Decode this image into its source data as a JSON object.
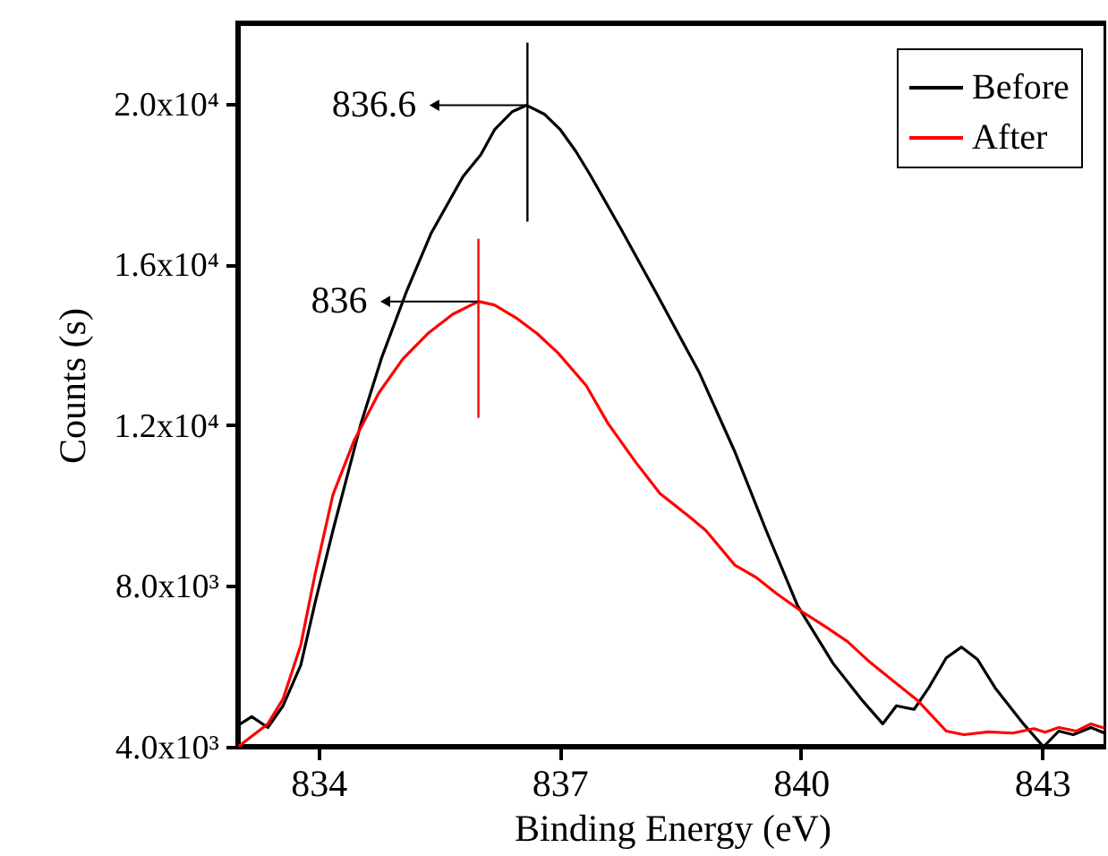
{
  "chart_data": {
    "type": "line",
    "xlabel": "Binding Energy (eV)",
    "ylabel": "Counts (s)",
    "xlim": [
      833,
      843.8
    ],
    "xticks": [
      834,
      837,
      840,
      843
    ],
    "ylim": [
      4000,
      22000
    ],
    "yticks": [
      {
        "value": 4000,
        "label": "4.0x10³"
      },
      {
        "value": 8000,
        "label": "8.0x10³"
      },
      {
        "value": 12000,
        "label": "1.2x10⁴"
      },
      {
        "value": 16000,
        "label": "1.6x10⁴"
      },
      {
        "value": 20000,
        "label": "2.0x10⁴"
      }
    ],
    "grid": false,
    "legend": "top right",
    "series": [
      {
        "name": "Before",
        "color": "#000000",
        "x": [
          833.0,
          833.17,
          833.37,
          833.56,
          833.78,
          833.96,
          834.18,
          834.53,
          834.79,
          835.1,
          835.4,
          835.8,
          836.02,
          836.19,
          836.41,
          836.59,
          836.81,
          837.01,
          837.2,
          837.38,
          837.77,
          838.21,
          838.74,
          839.18,
          839.57,
          839.96,
          840.4,
          840.75,
          841.02,
          841.19,
          841.41,
          841.59,
          841.81,
          842.0,
          842.2,
          842.42,
          842.77,
          843.02,
          843.21,
          843.39,
          843.61,
          843.78
        ],
        "values": [
          4530,
          4750,
          4480,
          5020,
          6030,
          7600,
          9380,
          12050,
          13700,
          15350,
          16770,
          18190,
          18730,
          19350,
          19800,
          19960,
          19740,
          19350,
          18820,
          18230,
          16860,
          15260,
          13300,
          11340,
          9380,
          7510,
          6080,
          5190,
          4570,
          5020,
          4930,
          5460,
          6210,
          6480,
          6170,
          5460,
          4570,
          4000,
          4390,
          4300,
          4480,
          4340
        ]
      },
      {
        "name": "After",
        "color": "#ff0000",
        "x": [
          833.0,
          833.37,
          833.56,
          833.78,
          833.96,
          834.18,
          834.44,
          834.75,
          835.05,
          835.36,
          835.67,
          835.99,
          836.19,
          836.46,
          836.72,
          836.98,
          837.33,
          837.6,
          837.95,
          838.25,
          838.61,
          838.82,
          839.18,
          839.44,
          839.7,
          840.01,
          840.32,
          840.58,
          840.84,
          841.15,
          841.46,
          841.81,
          842.03,
          842.33,
          842.64,
          842.9,
          843.04,
          843.21,
          843.43,
          843.61,
          843.78
        ],
        "values": [
          4000,
          4570,
          5190,
          6530,
          8310,
          10270,
          11600,
          12800,
          13650,
          14280,
          14760,
          15080,
          14990,
          14670,
          14280,
          13800,
          12990,
          12050,
          11070,
          10300,
          9730,
          9380,
          8520,
          8220,
          7810,
          7370,
          6970,
          6620,
          6140,
          5640,
          5140,
          4390,
          4300,
          4370,
          4340,
          4450,
          4360,
          4480,
          4390,
          4570,
          4460
        ]
      }
    ],
    "annotations": [
      {
        "text": "836.6",
        "x": 836.6,
        "y": 19960
      },
      {
        "text": "836",
        "x": 835.99,
        "y": 15080
      }
    ]
  }
}
